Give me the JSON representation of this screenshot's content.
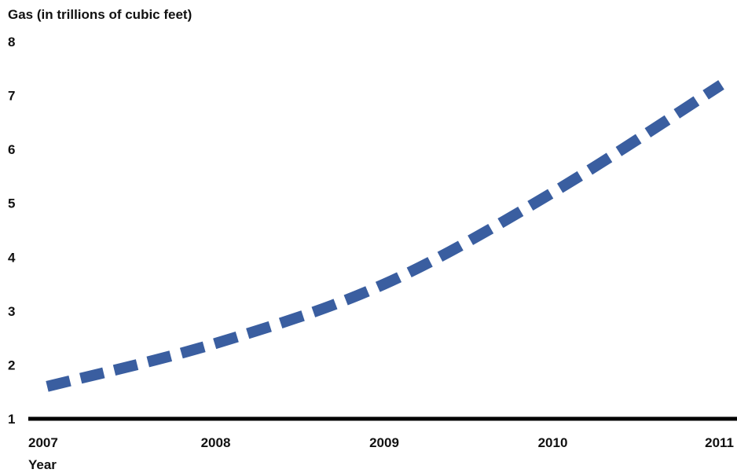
{
  "chart_data": {
    "type": "line",
    "title": "",
    "ylabel": "Gas (in trillions of cubic feet)",
    "xlabel": "Year",
    "categories": [
      "2007",
      "2008",
      "2009",
      "2010",
      "2011"
    ],
    "series": [
      {
        "values": [
          1.6,
          2.4,
          3.5,
          5.2,
          7.2
        ],
        "color": "#3a5ea0",
        "line_style": "dashed"
      }
    ],
    "ylim": [
      1,
      8
    ],
    "yticks": [
      1,
      2,
      3,
      4,
      5,
      6,
      7,
      8
    ],
    "grid": false
  }
}
